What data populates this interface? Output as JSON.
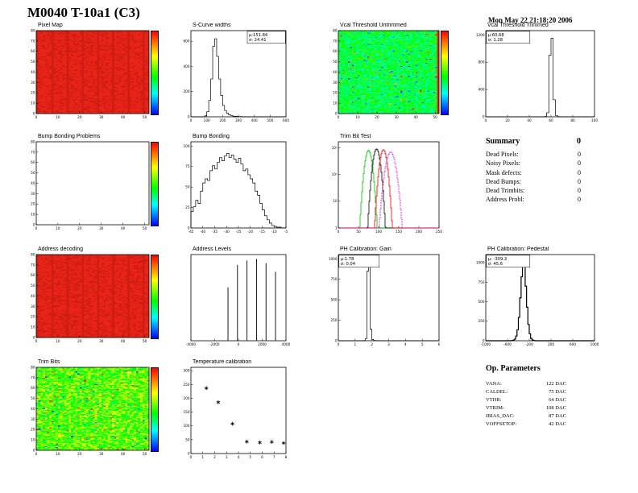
{
  "header": {
    "title": "M0040 T-10a1 (C3)",
    "date": "Mon May 22 21:18:20 2006"
  },
  "summary": {
    "heading": "Summary",
    "total": "0",
    "rows": [
      {
        "label": "Dead Pixels:",
        "value": "0"
      },
      {
        "label": "Noisy Pixels:",
        "value": "0"
      },
      {
        "label": "Mask defects:",
        "value": "0"
      },
      {
        "label": "Dead Bumps:",
        "value": "0"
      },
      {
        "label": "Dead Trimbits:",
        "value": "0"
      },
      {
        "label": "Address Probl:",
        "value": "0"
      }
    ]
  },
  "op_parameters": {
    "heading": "Op. Parameters",
    "rows": [
      {
        "label": "VANA:",
        "value": "122 DAC"
      },
      {
        "label": "CALDEL:",
        "value": "75 DAC"
      },
      {
        "label": "VTHR:",
        "value": "64 DAC"
      },
      {
        "label": "VTRIM:",
        "value": "108 DAC"
      },
      {
        "label": "IBIAS_DAC:",
        "value": "87 DAC"
      },
      {
        "label": "VOFFSETOP:",
        "value": "42 DAC"
      }
    ]
  },
  "chart_data": [
    {
      "id": "pixel-map",
      "type": "heatmap",
      "mode": "uniform",
      "title": "Pixel Map",
      "cols": 52,
      "rows": 80,
      "color": "#e82418",
      "shade": "#cf1d12",
      "seed": 11,
      "xlim": [
        0,
        52
      ],
      "x_ticks": [
        0,
        10,
        20,
        30,
        40,
        50
      ],
      "ylim": [
        0,
        80
      ],
      "y_ticks": [
        0,
        10,
        20,
        30,
        40,
        50,
        60,
        70,
        80
      ],
      "colorbar": true
    },
    {
      "id": "scurve-widths",
      "type": "histogram",
      "title": "S-Curve widths",
      "xlim": [
        0,
        600
      ],
      "x_ticks": [
        0,
        100,
        200,
        300,
        400,
        500,
        600
      ],
      "ymax": 650,
      "y_ticks": [
        0,
        200,
        400,
        600
      ],
      "bins": [
        0,
        0,
        0,
        0,
        0,
        0,
        0,
        8,
        40,
        130,
        300,
        560,
        620,
        480,
        300,
        170,
        90,
        50,
        28,
        16,
        10,
        6,
        4,
        3,
        2,
        2,
        1,
        1,
        1,
        0,
        0,
        0,
        0,
        0,
        0,
        0,
        0,
        0,
        0,
        0,
        0,
        0,
        0,
        0,
        0,
        0,
        0,
        0
      ],
      "stats_lines": [
        "μ:151.84",
        "σ: 24.41"
      ],
      "stats_pos": "tr"
    },
    {
      "id": "vcal-untrimmed",
      "type": "heatmap",
      "mode": "noise",
      "title": "Vcal Threshold Untrimmed",
      "cols": 52,
      "rows": 80,
      "base": 0.44,
      "spread": 0.13,
      "low_frac": 0.02,
      "high_frac": 0.012,
      "hot_last_col": true,
      "seed": 23,
      "xlim": [
        0,
        52
      ],
      "x_ticks": [
        0,
        10,
        20,
        30,
        40,
        50
      ],
      "ylim": [
        0,
        80
      ],
      "y_ticks": [
        0,
        10,
        20,
        30,
        40,
        50,
        60,
        70,
        80
      ],
      "colorbar": true
    },
    {
      "id": "vcal-trimmed",
      "type": "histogram",
      "title": "Vcal Threshold Trimmed",
      "xlim": [
        0,
        100
      ],
      "x_ticks": [
        0,
        20,
        40,
        60,
        80,
        100
      ],
      "ymax": 1200,
      "y_ticks": [
        0,
        400,
        800,
        1200
      ],
      "bins": [
        0,
        0,
        0,
        0,
        0,
        0,
        0,
        0,
        0,
        0,
        0,
        0,
        0,
        0,
        0,
        0,
        0,
        0,
        0,
        0,
        0,
        0,
        0,
        0,
        0,
        0,
        0,
        5,
        60,
        900,
        1150,
        250,
        20,
        3,
        0,
        0,
        0,
        0,
        0,
        0,
        0,
        0,
        0,
        0,
        0,
        0,
        0,
        0,
        0,
        0
      ],
      "stats_lines": [
        "μ:60.68",
        "σ: 1.28"
      ],
      "stats_pos": "tl"
    },
    {
      "id": "bump-problems",
      "type": "heatmap",
      "mode": "blank",
      "title": "Bump Bonding Problems",
      "cols": 52,
      "rows": 80,
      "xlim": [
        0,
        52
      ],
      "x_ticks": [
        0,
        10,
        20,
        30,
        40,
        50
      ],
      "ylim": [
        0,
        80
      ],
      "y_ticks": [
        0,
        10,
        20,
        30,
        40,
        50,
        60,
        70,
        80
      ],
      "colorbar": true
    },
    {
      "id": "bump-bonding",
      "type": "histogram",
      "title": "Bump Bonding",
      "xlim": [
        -45,
        -5
      ],
      "x_ticks": [
        -45,
        -40,
        -35,
        -30,
        -25,
        -20,
        -15,
        -10,
        -5
      ],
      "ymax": 100,
      "y_ticks": [
        0,
        25,
        50,
        75,
        100
      ],
      "bins": [
        20,
        26,
        34,
        30,
        45,
        55,
        60,
        58,
        70,
        76,
        72,
        80,
        86,
        82,
        88,
        91,
        86,
        89,
        84,
        80,
        85,
        78,
        70,
        72,
        65,
        60,
        55,
        45,
        40,
        30,
        22,
        15,
        10,
        6,
        3,
        2,
        1,
        1,
        0,
        0
      ]
    },
    {
      "id": "trimbit-test",
      "type": "multi_histogram",
      "title": "Trim Bit Test",
      "xlim": [
        0,
        250
      ],
      "x_ticks": [
        0,
        50,
        100,
        150,
        200,
        250
      ],
      "log_ymax": 1000,
      "y_ticks_log": [
        1,
        10,
        100,
        1000
      ],
      "series": [
        {
          "name": "trim-bits-0",
          "color": "#00bb00",
          "mu": 75,
          "sigma": 6,
          "peak": 800
        },
        {
          "name": "trim-bits-1",
          "color": "#000000",
          "mu": 95,
          "sigma": 6,
          "peak": 900
        },
        {
          "name": "trim-bits-2",
          "color": "#ee0000",
          "mu": 112,
          "sigma": 6,
          "peak": 850
        },
        {
          "name": "trim-bits-3",
          "color": "#cc00cc",
          "mu": 130,
          "sigma": 8,
          "peak": 700,
          "dash": true
        }
      ]
    },
    {
      "id": "address-decoding",
      "type": "heatmap",
      "mode": "uniform",
      "title": "Address decoding",
      "cols": 52,
      "rows": 80,
      "color": "#e82418",
      "shade": "#cf1d12",
      "seed": 31,
      "xlim": [
        0,
        52
      ],
      "x_ticks": [
        0,
        10,
        20,
        30,
        40,
        50
      ],
      "ylim": [
        0,
        80
      ],
      "y_ticks": [
        0,
        10,
        20,
        30,
        40,
        50,
        60,
        70,
        80
      ],
      "colorbar": true
    },
    {
      "id": "address-levels",
      "type": "spikes",
      "title": "Address Levels",
      "xlim": [
        -4000,
        4000
      ],
      "x_ticks": [
        -4000,
        -2000,
        0,
        2000,
        4000
      ],
      "spikes": [
        {
          "x": -880,
          "h": 0.62
        },
        {
          "x": -80,
          "h": 0.88
        },
        {
          "x": 720,
          "h": 0.93
        },
        {
          "x": 1520,
          "h": 0.95
        },
        {
          "x": 2320,
          "h": 0.9
        },
        {
          "x": 3120,
          "h": 0.8
        }
      ]
    },
    {
      "id": "ph-gain",
      "type": "histogram",
      "title": "PH Calibration: Gain",
      "xlim": [
        0,
        6
      ],
      "x_ticks": [
        0,
        1,
        2,
        3,
        4,
        5,
        6
      ],
      "ymax": 1000,
      "y_ticks": [
        0,
        250,
        500,
        750,
        1000
      ],
      "bins": [
        0,
        0,
        0,
        0,
        0,
        0,
        0,
        0,
        0,
        0,
        0,
        0,
        0,
        0,
        0,
        3,
        25,
        850,
        950,
        140,
        15,
        4,
        2,
        1,
        0,
        1,
        0,
        0,
        0,
        0,
        0,
        0,
        0,
        0,
        0,
        0,
        0,
        0,
        0,
        0,
        0,
        0,
        0,
        0,
        0,
        0,
        0,
        0,
        0,
        0,
        0,
        0,
        0,
        0,
        0,
        0,
        0,
        0,
        0,
        0
      ],
      "stats_lines": [
        "μ:1.78",
        "σ: 0.04"
      ],
      "stats_pos": "tl"
    },
    {
      "id": "ph-pedestal",
      "type": "histogram",
      "title": "PH Calibration: Pedestal",
      "thick": true,
      "xlim": [
        -1000,
        1000
      ],
      "x_ticks": [
        -1000,
        -600,
        -200,
        200,
        600,
        1000
      ],
      "ymax": 1050,
      "y_ticks": [
        0,
        250,
        500,
        750,
        1000
      ],
      "bins": [
        0,
        0,
        0,
        0,
        0,
        0,
        0,
        0,
        0,
        0,
        0,
        0,
        0,
        0,
        0,
        0,
        0,
        0,
        1,
        3,
        8,
        20,
        60,
        140,
        300,
        550,
        820,
        1000,
        950,
        700,
        430,
        210,
        90,
        30,
        10,
        3,
        1,
        0,
        0,
        0,
        0,
        0,
        0,
        0,
        0,
        0,
        0,
        0,
        0,
        0,
        0,
        0,
        0,
        0,
        0,
        0,
        0,
        0,
        0,
        0,
        0,
        0,
        0,
        0,
        0,
        0,
        0,
        0,
        0,
        0,
        0,
        0,
        0,
        0,
        0,
        0,
        0,
        0,
        0,
        0
      ],
      "stats_lines": [
        "μ: -309.3",
        "σ: 45.6"
      ],
      "stats_pos": "tl"
    },
    {
      "id": "trim-bits",
      "type": "heatmap",
      "mode": "noise",
      "title": "Trim Bits",
      "cols": 52,
      "rows": 80,
      "base": 0.58,
      "spread": 0.16,
      "low_frac": 0.01,
      "high_frac": 0.03,
      "seed": 41,
      "xlim": [
        0,
        52
      ],
      "x_ticks": [
        0,
        10,
        20,
        30,
        40,
        50
      ],
      "ylim": [
        0,
        80
      ],
      "y_ticks": [
        0,
        10,
        20,
        30,
        40,
        50,
        60,
        70,
        80
      ],
      "colorbar": true
    },
    {
      "id": "temp-calibration",
      "type": "scatter",
      "title": "Temperature calibration",
      "xlim": [
        0,
        8
      ],
      "x_ticks": [
        0,
        1,
        2,
        3,
        4,
        5,
        6,
        7,
        8
      ],
      "ylim": [
        0,
        300
      ],
      "y_ticks": [
        0,
        50,
        100,
        150,
        200,
        250,
        300
      ],
      "points": [
        [
          1.3,
          237
        ],
        [
          2.3,
          186
        ],
        [
          3.5,
          108
        ],
        [
          4.7,
          43
        ],
        [
          5.8,
          40
        ],
        [
          6.8,
          42
        ],
        [
          7.8,
          38
        ]
      ]
    }
  ]
}
